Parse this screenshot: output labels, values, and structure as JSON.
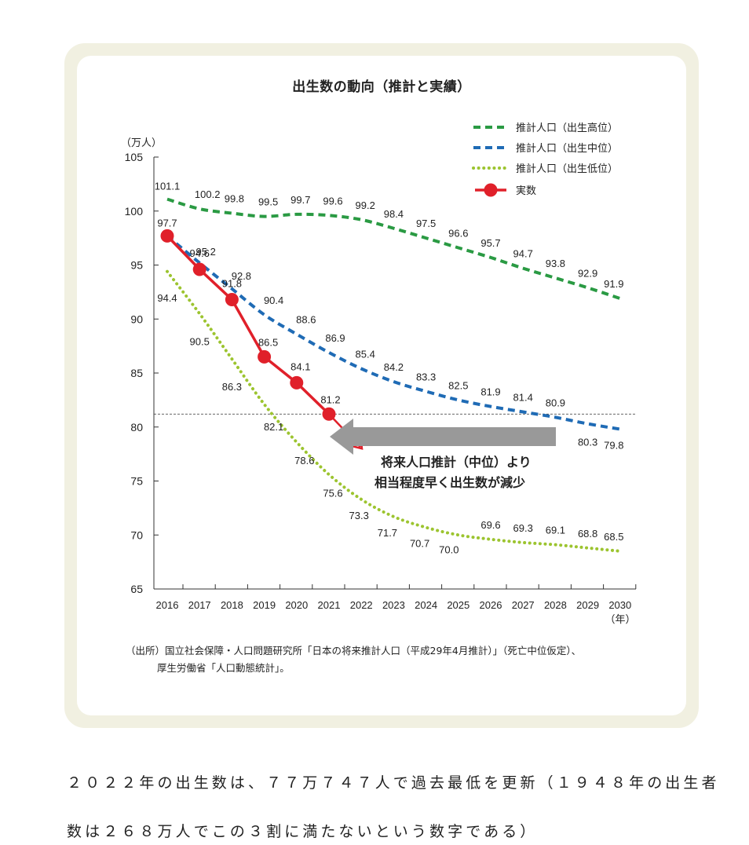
{
  "chart_title": "出生数の動向（推計と実績）",
  "source_note": {
    "line1": "（出所）国立社会保障・人口問題研究所「日本の将来推計人口（平成29年4月推計）」（死亡中位仮定）、",
    "line2": "厚生労働省「人口動態統計」。"
  },
  "caption": {
    "line1": "２０２２年の出生数は、７７万７４７人で過去最低を更新（１９４８年の出生者",
    "line2": "数は２６８万人でこの３割に満たないという数字である）"
  },
  "chart_data": {
    "type": "line",
    "title": "出生数の動向（推計と実績）",
    "ylabel": "（万人）",
    "xlabel": "（年）",
    "ylim": [
      65,
      105
    ],
    "yticks": [
      65,
      70,
      75,
      80,
      85,
      90,
      95,
      100,
      105
    ],
    "x": [
      2016,
      2017,
      2018,
      2019,
      2020,
      2021,
      2022,
      2023,
      2024,
      2025,
      2026,
      2027,
      2028,
      2029,
      2030
    ],
    "series": [
      {
        "name": "推計人口（出生高位）",
        "color": "#2a9a43",
        "style": "dashed",
        "values": [
          101.1,
          100.2,
          99.8,
          99.5,
          99.7,
          99.6,
          99.2,
          98.4,
          97.5,
          96.6,
          95.7,
          94.7,
          93.8,
          92.9,
          91.9
        ]
      },
      {
        "name": "推計人口（出生中位）",
        "color": "#1f6bb5",
        "style": "dashed",
        "values": [
          97.7,
          95.2,
          92.8,
          90.4,
          88.6,
          86.9,
          85.4,
          84.2,
          83.3,
          82.5,
          81.9,
          81.4,
          80.9,
          80.3,
          79.8
        ]
      },
      {
        "name": "推計人口（出生低位）",
        "color": "#9cc42f",
        "style": "dotted",
        "values": [
          94.4,
          90.5,
          86.3,
          82.1,
          78.6,
          75.6,
          73.3,
          71.7,
          70.7,
          70.0,
          69.6,
          69.3,
          69.1,
          68.8,
          68.5
        ]
      },
      {
        "name": "実数",
        "color": "#e0202a",
        "style": "solid-marker",
        "values": [
          97.7,
          94.6,
          91.8,
          86.5,
          84.1,
          81.2,
          null,
          null,
          null,
          null,
          null,
          null,
          null,
          null,
          null
        ]
      }
    ],
    "reference_line": 81.2,
    "annotation": {
      "line1": "将来人口推計（中位）より",
      "line2": "相当程度早く出生数が減少"
    },
    "grid": false,
    "legend": "top-right"
  }
}
